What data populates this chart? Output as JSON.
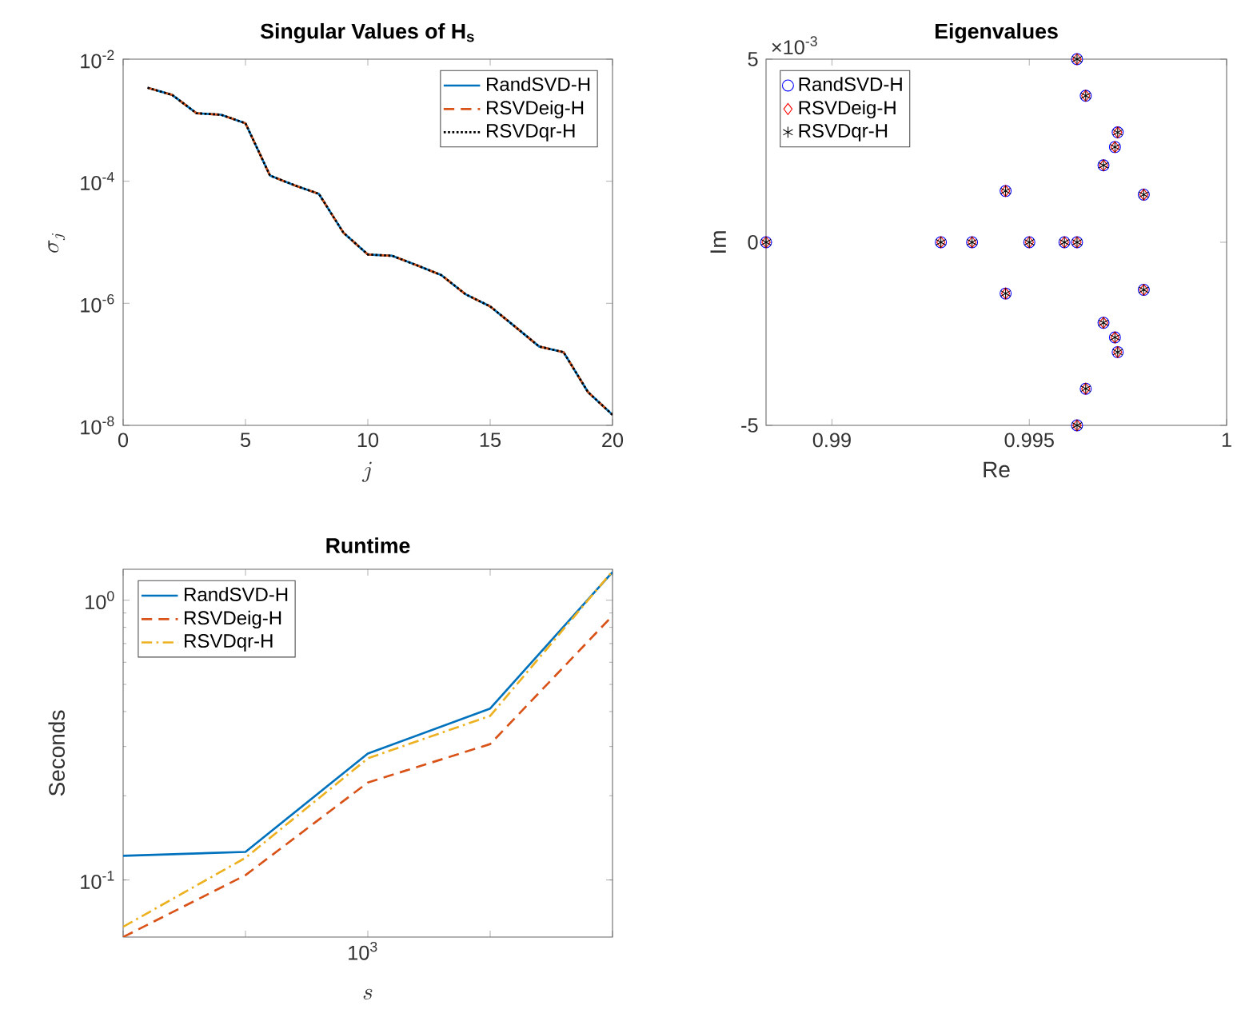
{
  "chart_data": [
    {
      "type": "line",
      "title": "Singular Values of H$_{s}$",
      "xlabel": "j",
      "ylabel": "\\sigma_j",
      "log": "y",
      "legend": "top right",
      "x": [
        1,
        2,
        3,
        4,
        5,
        6,
        7,
        8,
        9,
        10,
        11,
        12,
        13,
        14,
        15,
        16,
        17,
        18,
        19,
        20
      ],
      "xlim": [
        0,
        20
      ],
      "xticks": [
        0,
        5,
        10,
        15,
        20
      ],
      "ylim": [
        1e-08,
        0.01
      ],
      "yticks": [
        {
          "value": 1e-08,
          "label": "10$^{-8}$"
        },
        {
          "value": 1e-06,
          "label": "10$^{-6}$"
        },
        {
          "value": 0.0001,
          "label": "10$^{-4}$"
        },
        {
          "value": 0.01,
          "label": "10$^{-2}$"
        }
      ],
      "series": [
        {
          "name": "RandSVD-H",
          "color": "#0072bd",
          "line_style": "solid",
          "values": [
            0.0034,
            0.0026,
            0.0013,
            0.00123,
            0.00089,
            0.000124,
            8.6e-05,
            6.2e-05,
            1.44e-05,
            6.3e-06,
            6e-06,
            4.2e-06,
            2.9e-06,
            1.4e-06,
            8.9e-07,
            4.2e-07,
            1.96e-07,
            1.58e-07,
            3.5e-08,
            1.49e-08
          ]
        },
        {
          "name": "RSVDeig-H",
          "color": "#d95319",
          "line_style": "dashed",
          "values": [
            0.0034,
            0.0026,
            0.0013,
            0.00123,
            0.00089,
            0.000124,
            8.6e-05,
            6.2e-05,
            1.44e-05,
            6.3e-06,
            6e-06,
            4.2e-06,
            2.9e-06,
            1.4e-06,
            8.9e-07,
            4.2e-07,
            1.96e-07,
            1.58e-07,
            3.5e-08,
            1.49e-08
          ]
        },
        {
          "name": "RSVDqr-H",
          "color": "#000000",
          "line_style": "dotted",
          "values": [
            0.0034,
            0.0026,
            0.0013,
            0.00123,
            0.00089,
            0.000124,
            8.6e-05,
            6.2e-05,
            1.44e-05,
            6.3e-06,
            6e-06,
            4.2e-06,
            2.9e-06,
            1.4e-06,
            8.9e-07,
            4.2e-07,
            1.96e-07,
            1.58e-07,
            3.5e-08,
            1.49e-08
          ]
        }
      ]
    },
    {
      "type": "scatter",
      "title": "Eigenvalues",
      "xlabel": "Re",
      "ylabel": "Im",
      "legend": "top left",
      "annotations": [
        "×10$^{-3}$"
      ],
      "x": [
        0.98833,
        0.99276,
        0.99355,
        0.9944,
        0.9944,
        0.995,
        0.99589,
        0.99621,
        0.99621,
        0.99621,
        0.99643,
        0.99643,
        0.99688,
        0.99688,
        0.99717,
        0.99724,
        0.99717,
        0.99724,
        0.9979,
        0.9979
      ],
      "xlim": [
        0.98833,
        1.0
      ],
      "xticks": [
        0.99,
        0.995,
        1
      ],
      "ylim": [
        -5,
        5
      ],
      "yticks": [
        -5,
        0,
        5
      ],
      "series": [
        {
          "name": "RandSVD-H",
          "color": "#0000ff",
          "marker": "circle",
          "values": [
            0,
            0,
            0,
            1.4,
            -1.4,
            0,
            0,
            0,
            5,
            -5,
            4,
            -4,
            2.1,
            -2.2,
            2.6,
            3,
            -2.6,
            -3,
            1.3,
            -1.3
          ]
        },
        {
          "name": "RSVDeig-H",
          "color": "#ff0000",
          "marker": "diamond",
          "values": [
            0,
            0,
            0,
            1.4,
            -1.4,
            0,
            0,
            0,
            5,
            -5,
            4,
            -4,
            2.1,
            -2.2,
            2.6,
            3,
            -2.6,
            -3,
            1.3,
            -1.3
          ]
        },
        {
          "name": "RSVDqr-H",
          "color": "#000000",
          "marker": "cross",
          "values": [
            0,
            0,
            0,
            1.4,
            -1.4,
            0,
            0,
            0,
            5,
            -5,
            4,
            -4,
            2.1,
            -2.2,
            2.6,
            3,
            -2.6,
            -3,
            1.3,
            -1.3
          ]
        }
      ]
    },
    {
      "type": "line",
      "title": "Runtime",
      "xlabel": "s",
      "ylabel": "Seconds",
      "log": "y",
      "legend": "top left",
      "annotations": [
        "10$^{3}$"
      ],
      "categories": [
        null,
        null,
        null,
        null,
        null
      ],
      "ylim": [
        0.0625,
        1.29
      ],
      "yticks": [
        {
          "value": 0.1,
          "label": "10$^{-1}$"
        },
        {
          "value": 1,
          "label": "10$^{0}$"
        }
      ],
      "series": [
        {
          "name": "RandSVD-H",
          "color": "#0072bd",
          "line_style": "solid",
          "values": [
            0.122,
            0.126,
            0.283,
            0.41,
            1.26
          ]
        },
        {
          "name": "RSVDeig-H",
          "color": "#d95319",
          "line_style": "dashed",
          "values": [
            0.0625,
            0.104,
            0.223,
            0.306,
            0.88
          ]
        },
        {
          "name": "RSVDqr-H",
          "color": "#edb120",
          "line_style": "dashdot",
          "values": [
            0.068,
            0.12,
            0.272,
            0.386,
            1.27
          ]
        }
      ]
    }
  ]
}
